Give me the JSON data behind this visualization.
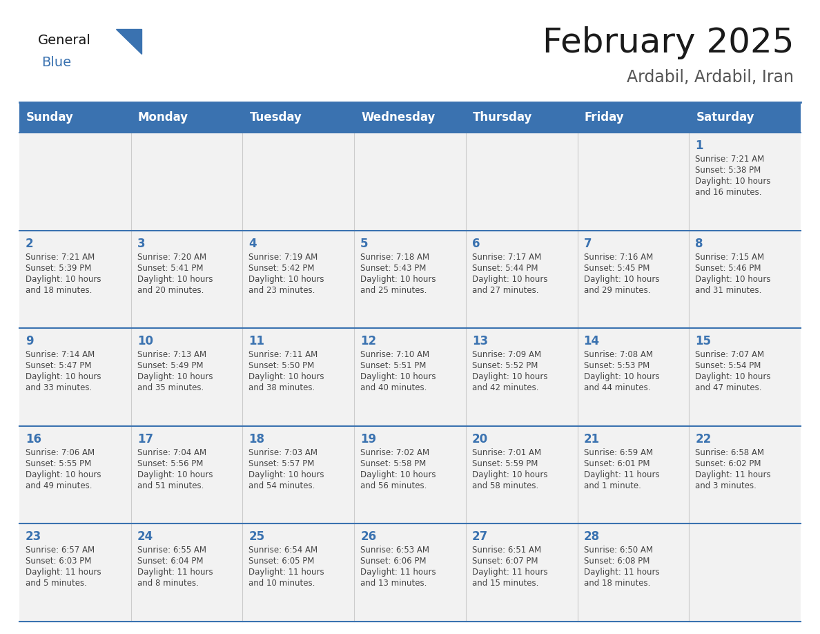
{
  "title": "February 2025",
  "subtitle": "Ardabil, Ardabil, Iran",
  "header_color": "#3a72b0",
  "header_text_color": "#ffffff",
  "cell_bg_color": "#f2f2f2",
  "day_number_color": "#3a72b0",
  "text_color": "#444444",
  "line_color": "#3a72b0",
  "days_of_week": [
    "Sunday",
    "Monday",
    "Tuesday",
    "Wednesday",
    "Thursday",
    "Friday",
    "Saturday"
  ],
  "weeks": [
    [
      {
        "day": null,
        "info": null
      },
      {
        "day": null,
        "info": null
      },
      {
        "day": null,
        "info": null
      },
      {
        "day": null,
        "info": null
      },
      {
        "day": null,
        "info": null
      },
      {
        "day": null,
        "info": null
      },
      {
        "day": "1",
        "info": "Sunrise: 7:21 AM\nSunset: 5:38 PM\nDaylight: 10 hours\nand 16 minutes."
      }
    ],
    [
      {
        "day": "2",
        "info": "Sunrise: 7:21 AM\nSunset: 5:39 PM\nDaylight: 10 hours\nand 18 minutes."
      },
      {
        "day": "3",
        "info": "Sunrise: 7:20 AM\nSunset: 5:41 PM\nDaylight: 10 hours\nand 20 minutes."
      },
      {
        "day": "4",
        "info": "Sunrise: 7:19 AM\nSunset: 5:42 PM\nDaylight: 10 hours\nand 23 minutes."
      },
      {
        "day": "5",
        "info": "Sunrise: 7:18 AM\nSunset: 5:43 PM\nDaylight: 10 hours\nand 25 minutes."
      },
      {
        "day": "6",
        "info": "Sunrise: 7:17 AM\nSunset: 5:44 PM\nDaylight: 10 hours\nand 27 minutes."
      },
      {
        "day": "7",
        "info": "Sunrise: 7:16 AM\nSunset: 5:45 PM\nDaylight: 10 hours\nand 29 minutes."
      },
      {
        "day": "8",
        "info": "Sunrise: 7:15 AM\nSunset: 5:46 PM\nDaylight: 10 hours\nand 31 minutes."
      }
    ],
    [
      {
        "day": "9",
        "info": "Sunrise: 7:14 AM\nSunset: 5:47 PM\nDaylight: 10 hours\nand 33 minutes."
      },
      {
        "day": "10",
        "info": "Sunrise: 7:13 AM\nSunset: 5:49 PM\nDaylight: 10 hours\nand 35 minutes."
      },
      {
        "day": "11",
        "info": "Sunrise: 7:11 AM\nSunset: 5:50 PM\nDaylight: 10 hours\nand 38 minutes."
      },
      {
        "day": "12",
        "info": "Sunrise: 7:10 AM\nSunset: 5:51 PM\nDaylight: 10 hours\nand 40 minutes."
      },
      {
        "day": "13",
        "info": "Sunrise: 7:09 AM\nSunset: 5:52 PM\nDaylight: 10 hours\nand 42 minutes."
      },
      {
        "day": "14",
        "info": "Sunrise: 7:08 AM\nSunset: 5:53 PM\nDaylight: 10 hours\nand 44 minutes."
      },
      {
        "day": "15",
        "info": "Sunrise: 7:07 AM\nSunset: 5:54 PM\nDaylight: 10 hours\nand 47 minutes."
      }
    ],
    [
      {
        "day": "16",
        "info": "Sunrise: 7:06 AM\nSunset: 5:55 PM\nDaylight: 10 hours\nand 49 minutes."
      },
      {
        "day": "17",
        "info": "Sunrise: 7:04 AM\nSunset: 5:56 PM\nDaylight: 10 hours\nand 51 minutes."
      },
      {
        "day": "18",
        "info": "Sunrise: 7:03 AM\nSunset: 5:57 PM\nDaylight: 10 hours\nand 54 minutes."
      },
      {
        "day": "19",
        "info": "Sunrise: 7:02 AM\nSunset: 5:58 PM\nDaylight: 10 hours\nand 56 minutes."
      },
      {
        "day": "20",
        "info": "Sunrise: 7:01 AM\nSunset: 5:59 PM\nDaylight: 10 hours\nand 58 minutes."
      },
      {
        "day": "21",
        "info": "Sunrise: 6:59 AM\nSunset: 6:01 PM\nDaylight: 11 hours\nand 1 minute."
      },
      {
        "day": "22",
        "info": "Sunrise: 6:58 AM\nSunset: 6:02 PM\nDaylight: 11 hours\nand 3 minutes."
      }
    ],
    [
      {
        "day": "23",
        "info": "Sunrise: 6:57 AM\nSunset: 6:03 PM\nDaylight: 11 hours\nand 5 minutes."
      },
      {
        "day": "24",
        "info": "Sunrise: 6:55 AM\nSunset: 6:04 PM\nDaylight: 11 hours\nand 8 minutes."
      },
      {
        "day": "25",
        "info": "Sunrise: 6:54 AM\nSunset: 6:05 PM\nDaylight: 11 hours\nand 10 minutes."
      },
      {
        "day": "26",
        "info": "Sunrise: 6:53 AM\nSunset: 6:06 PM\nDaylight: 11 hours\nand 13 minutes."
      },
      {
        "day": "27",
        "info": "Sunrise: 6:51 AM\nSunset: 6:07 PM\nDaylight: 11 hours\nand 15 minutes."
      },
      {
        "day": "28",
        "info": "Sunrise: 6:50 AM\nSunset: 6:08 PM\nDaylight: 11 hours\nand 18 minutes."
      },
      {
        "day": null,
        "info": null
      }
    ]
  ]
}
